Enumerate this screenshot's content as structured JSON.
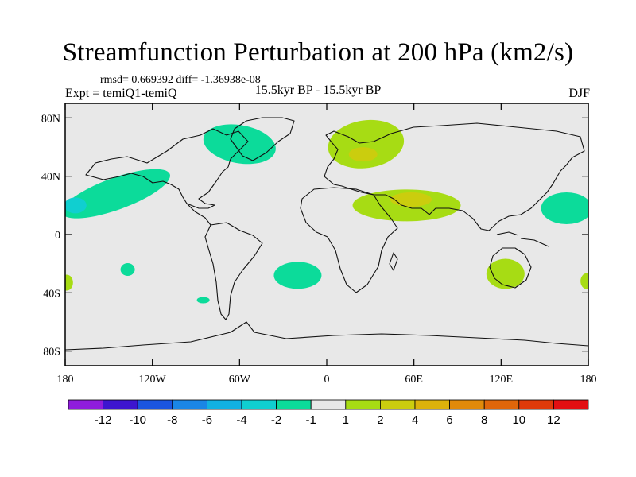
{
  "header": {
    "title": "Streamfunction Perturbation at 200 hPa (km2/s)",
    "stats": "rmsd= 0.669392 diff= -1.36938e-08",
    "experiment": "Expt = temiQ1-temiQ",
    "period": "15.5kyr BP - 15.5kyr BP",
    "season": "DJF"
  },
  "axes": {
    "lon_ticks": [
      {
        "value": -180,
        "label": "180"
      },
      {
        "value": -120,
        "label": "120W"
      },
      {
        "value": -60,
        "label": "60W"
      },
      {
        "value": 0,
        "label": "0"
      },
      {
        "value": 60,
        "label": "60E"
      },
      {
        "value": 120,
        "label": "120E"
      },
      {
        "value": 180,
        "label": "180"
      }
    ],
    "lat_ticks": [
      {
        "value": 80,
        "label": "80N"
      },
      {
        "value": 40,
        "label": "40N"
      },
      {
        "value": 0,
        "label": "0"
      },
      {
        "value": -40,
        "label": "40S"
      },
      {
        "value": -80,
        "label": "80S"
      }
    ],
    "lon_range": [
      -180,
      180
    ],
    "lat_range": [
      -90,
      90
    ]
  },
  "colorbar": {
    "colors": [
      "#8f1cdc",
      "#3d15cf",
      "#1a55e0",
      "#1a86e6",
      "#12b1e2",
      "#10cfd0",
      "#0cdb9a",
      "#e8e8e8",
      "#a7dc14",
      "#cbcd0e",
      "#dcb20b",
      "#e18a0a",
      "#e0660a",
      "#df3a0a",
      "#e30f12"
    ],
    "labels": [
      "-12",
      "-10",
      "-8",
      "-6",
      "-4",
      "-2",
      "-1",
      "1",
      "2",
      "4",
      "6",
      "8",
      "10",
      "12"
    ]
  },
  "chart_data": {
    "type": "map",
    "projection": "cylindrical equidistant",
    "field": "200 hPa streamfunction perturbation",
    "units": "km2/s",
    "background_color": "#e8e8e8",
    "anomalies": [
      {
        "name": "north-atlantic",
        "level": "-1 to -2",
        "lon": -60,
        "lat": 62,
        "color": "#0cdb9a"
      },
      {
        "name": "north-pacific-east",
        "level": "-1 to -2",
        "lon": -145,
        "lat": 28,
        "color": "#0cdb9a"
      },
      {
        "name": "north-pacific-east-core",
        "level": "-2 to -4",
        "lon": -173,
        "lat": 20,
        "color": "#10cfd0"
      },
      {
        "name": "north-pacific-west",
        "level": "-1 to -2",
        "lon": 165,
        "lat": 18,
        "color": "#0cdb9a"
      },
      {
        "name": "south-atlantic",
        "level": "-1 to -2",
        "lon": -20,
        "lat": -28,
        "color": "#0cdb9a"
      },
      {
        "name": "south-pacific-small-1",
        "level": "-1 to -2",
        "lon": -137,
        "lat": -24,
        "color": "#0cdb9a"
      },
      {
        "name": "south-pacific-small-2",
        "level": "-1 to -2",
        "lon": -85,
        "lat": -45,
        "color": "#0cdb9a"
      },
      {
        "name": "europe",
        "level": "1 to 2",
        "lon": 27,
        "lat": 62,
        "color": "#a7dc14"
      },
      {
        "name": "europe-core",
        "level": "2 to 4",
        "lon": 25,
        "lat": 55,
        "color": "#cbcd0e"
      },
      {
        "name": "middle-east",
        "level": "1 to 2",
        "lon": 55,
        "lat": 20,
        "color": "#a7dc14"
      },
      {
        "name": "middle-east-core",
        "level": "2 to 4",
        "lon": 58,
        "lat": 24,
        "color": "#cbcd0e"
      },
      {
        "name": "australia",
        "level": "1 to 2",
        "lon": 123,
        "lat": -27,
        "color": "#a7dc14"
      },
      {
        "name": "south-pacific-edge-west",
        "level": "1 to 2",
        "lon": -179,
        "lat": -33,
        "color": "#a7dc14"
      },
      {
        "name": "south-pacific-edge-east",
        "level": "1 to 2",
        "lon": 179,
        "lat": -32,
        "color": "#a7dc14"
      }
    ]
  }
}
